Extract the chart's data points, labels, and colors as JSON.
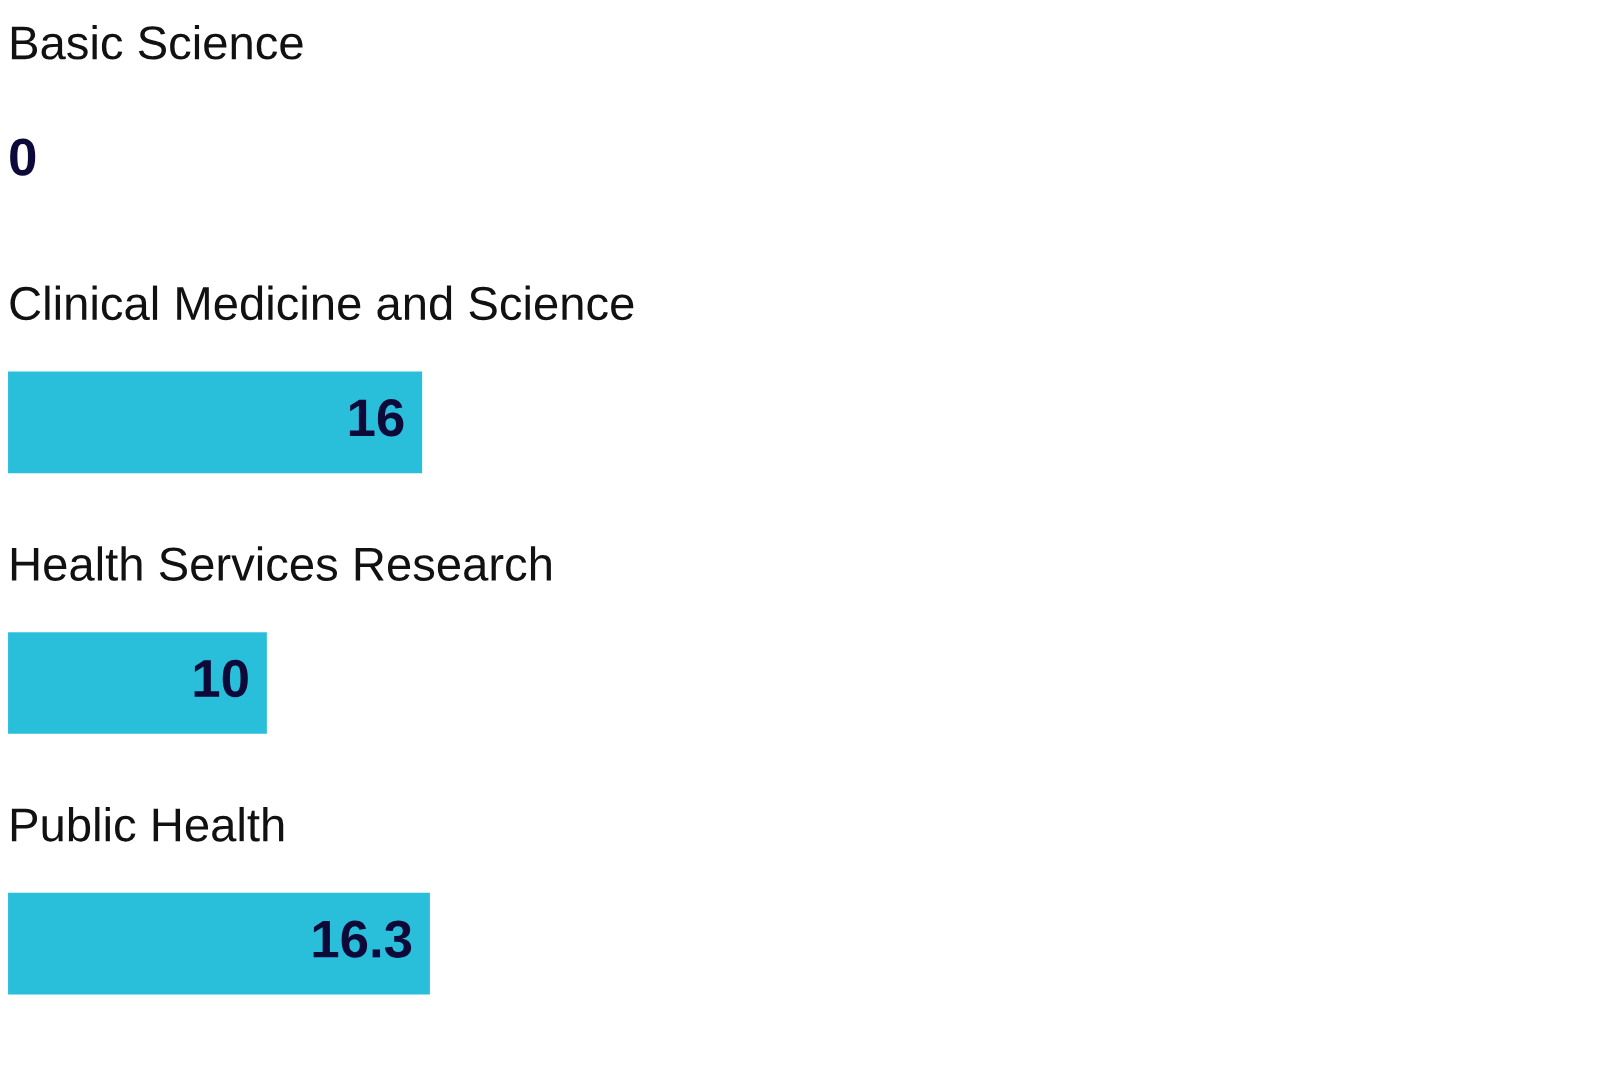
{
  "chart_data": {
    "type": "bar",
    "orientation": "horizontal",
    "categories": [
      "Basic Science",
      "Clinical Medicine and Science",
      "Health Services Research",
      "Public Health"
    ],
    "values": [
      0,
      16,
      10,
      16.3
    ],
    "color": "#29bfdb",
    "data_labels": true
  }
}
